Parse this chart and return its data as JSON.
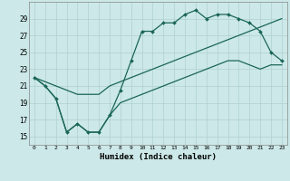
{
  "xlabel": "Humidex (Indice chaleur)",
  "bg_color": "#cce8e8",
  "grid_color": "#b0d0d0",
  "line_color": "#1a6655",
  "x_ticks": [
    0,
    1,
    2,
    3,
    4,
    5,
    6,
    7,
    8,
    9,
    10,
    11,
    12,
    13,
    14,
    15,
    16,
    17,
    18,
    19,
    20,
    21,
    22,
    23
  ],
  "y_ticks": [
    15,
    17,
    19,
    21,
    23,
    25,
    27,
    29
  ],
  "ylim": [
    14.0,
    31.0
  ],
  "xlim": [
    -0.5,
    23.5
  ],
  "line1_x": [
    0,
    1,
    2,
    3,
    4,
    5,
    6,
    7,
    8,
    9,
    10,
    11,
    12,
    13,
    14,
    15,
    16,
    17,
    18,
    19,
    20,
    21,
    22,
    23
  ],
  "line1_y": [
    22,
    21,
    19.5,
    15.5,
    16.5,
    15.5,
    15.5,
    17.5,
    20.5,
    24,
    27.5,
    27.5,
    28.5,
    28.5,
    29.5,
    30,
    29,
    29.5,
    29.5,
    29,
    28.5,
    27.5,
    25,
    24
  ],
  "line2_x": [
    0,
    1,
    2,
    3,
    4,
    5,
    6,
    7,
    8,
    9,
    10,
    11,
    12,
    13,
    14,
    15,
    16,
    17,
    18,
    19,
    20,
    21,
    22,
    23
  ],
  "line2_y": [
    22,
    21.5,
    21,
    20.5,
    20,
    20,
    20,
    21,
    21.5,
    22,
    22.5,
    23,
    23.5,
    24,
    24.5,
    25,
    25.5,
    26,
    26.5,
    27,
    27.5,
    28,
    28.5,
    29
  ],
  "line3_x": [
    0,
    1,
    2,
    3,
    4,
    5,
    6,
    7,
    8,
    9,
    10,
    11,
    12,
    13,
    14,
    15,
    16,
    17,
    18,
    19,
    20,
    21,
    22,
    23
  ],
  "line3_y": [
    22,
    21,
    19.5,
    15.5,
    16.5,
    15.5,
    15.5,
    17.5,
    19,
    19.5,
    20,
    20.5,
    21,
    21.5,
    22,
    22.5,
    23,
    23.5,
    24,
    24,
    23.5,
    23,
    23.5,
    23.5
  ]
}
